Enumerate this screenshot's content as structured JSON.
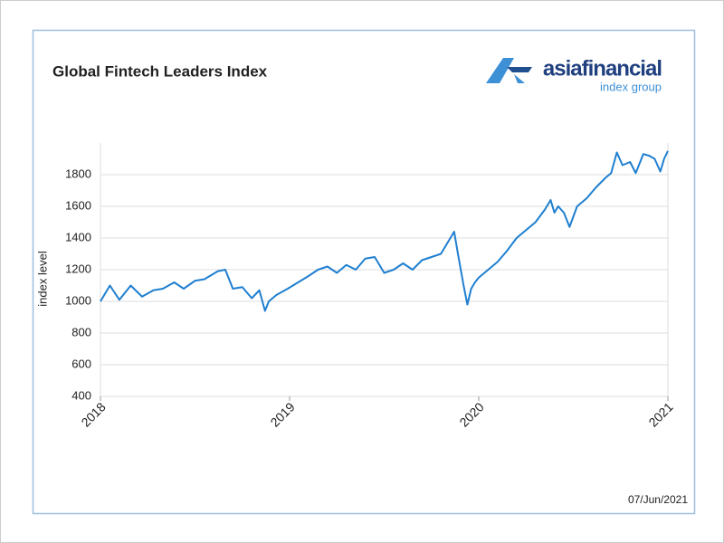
{
  "chart_data": {
    "type": "line",
    "title": "Global Fintech Leaders Index",
    "logo": {
      "name": "asiafinancial",
      "sub": "index group"
    },
    "date": "07/Jun/2021",
    "y_label": "index level",
    "x": [
      2018.0,
      2018.05,
      2018.1,
      2018.16,
      2018.22,
      2018.28,
      2018.33,
      2018.39,
      2018.44,
      2018.5,
      2018.55,
      2018.62,
      2018.66,
      2018.7,
      2018.75,
      2018.8,
      2018.84,
      2018.87,
      2018.89,
      2018.93,
      2018.99,
      2019.1,
      2019.15,
      2019.2,
      2019.25,
      2019.3,
      2019.35,
      2019.4,
      2019.45,
      2019.5,
      2019.55,
      2019.6,
      2019.65,
      2019.7,
      2019.75,
      2019.8,
      2019.85,
      2019.87,
      2019.89,
      2019.92,
      2019.94,
      2019.96,
      2019.98,
      2020.0,
      2020.05,
      2020.1,
      2020.15,
      2020.2,
      2020.25,
      2020.3,
      2020.35,
      2020.38,
      2020.4,
      2020.42,
      2020.45,
      2020.48,
      2020.52,
      2020.57,
      2020.62,
      2020.67,
      2020.7,
      2020.73,
      2020.76,
      2020.8,
      2020.83,
      2020.87,
      2020.9,
      2020.93,
      2020.96,
      2020.98,
      2021.0
    ],
    "series": [
      {
        "name": "Global Fintech Leaders Index",
        "color": "#1f7fd0",
        "values": [
          1000,
          1100,
          1010,
          1100,
          1030,
          1070,
          1080,
          1120,
          1080,
          1130,
          1140,
          1190,
          1200,
          1080,
          1090,
          1020,
          1070,
          940,
          1000,
          1040,
          1080,
          1160,
          1200,
          1220,
          1180,
          1230,
          1200,
          1270,
          1280,
          1180,
          1200,
          1240,
          1200,
          1260,
          1280,
          1300,
          1400,
          1440,
          1300,
          1100,
          980,
          1080,
          1120,
          1150,
          1200,
          1250,
          1320,
          1400,
          1450,
          1500,
          1580,
          1640,
          1560,
          1600,
          1560,
          1470,
          1600,
          1650,
          1720,
          1780,
          1810,
          1940,
          1860,
          1880,
          1810,
          1930,
          1920,
          1900,
          1820,
          1900,
          1950
        ]
      }
    ],
    "xlim": [
      2018,
      2021
    ],
    "xticks": [
      2018,
      2019,
      2020,
      2021
    ],
    "ylim": [
      400,
      2000
    ],
    "yticks": [
      400,
      600,
      800,
      1000,
      1200,
      1400,
      1600,
      1800
    ],
    "grid": true
  }
}
